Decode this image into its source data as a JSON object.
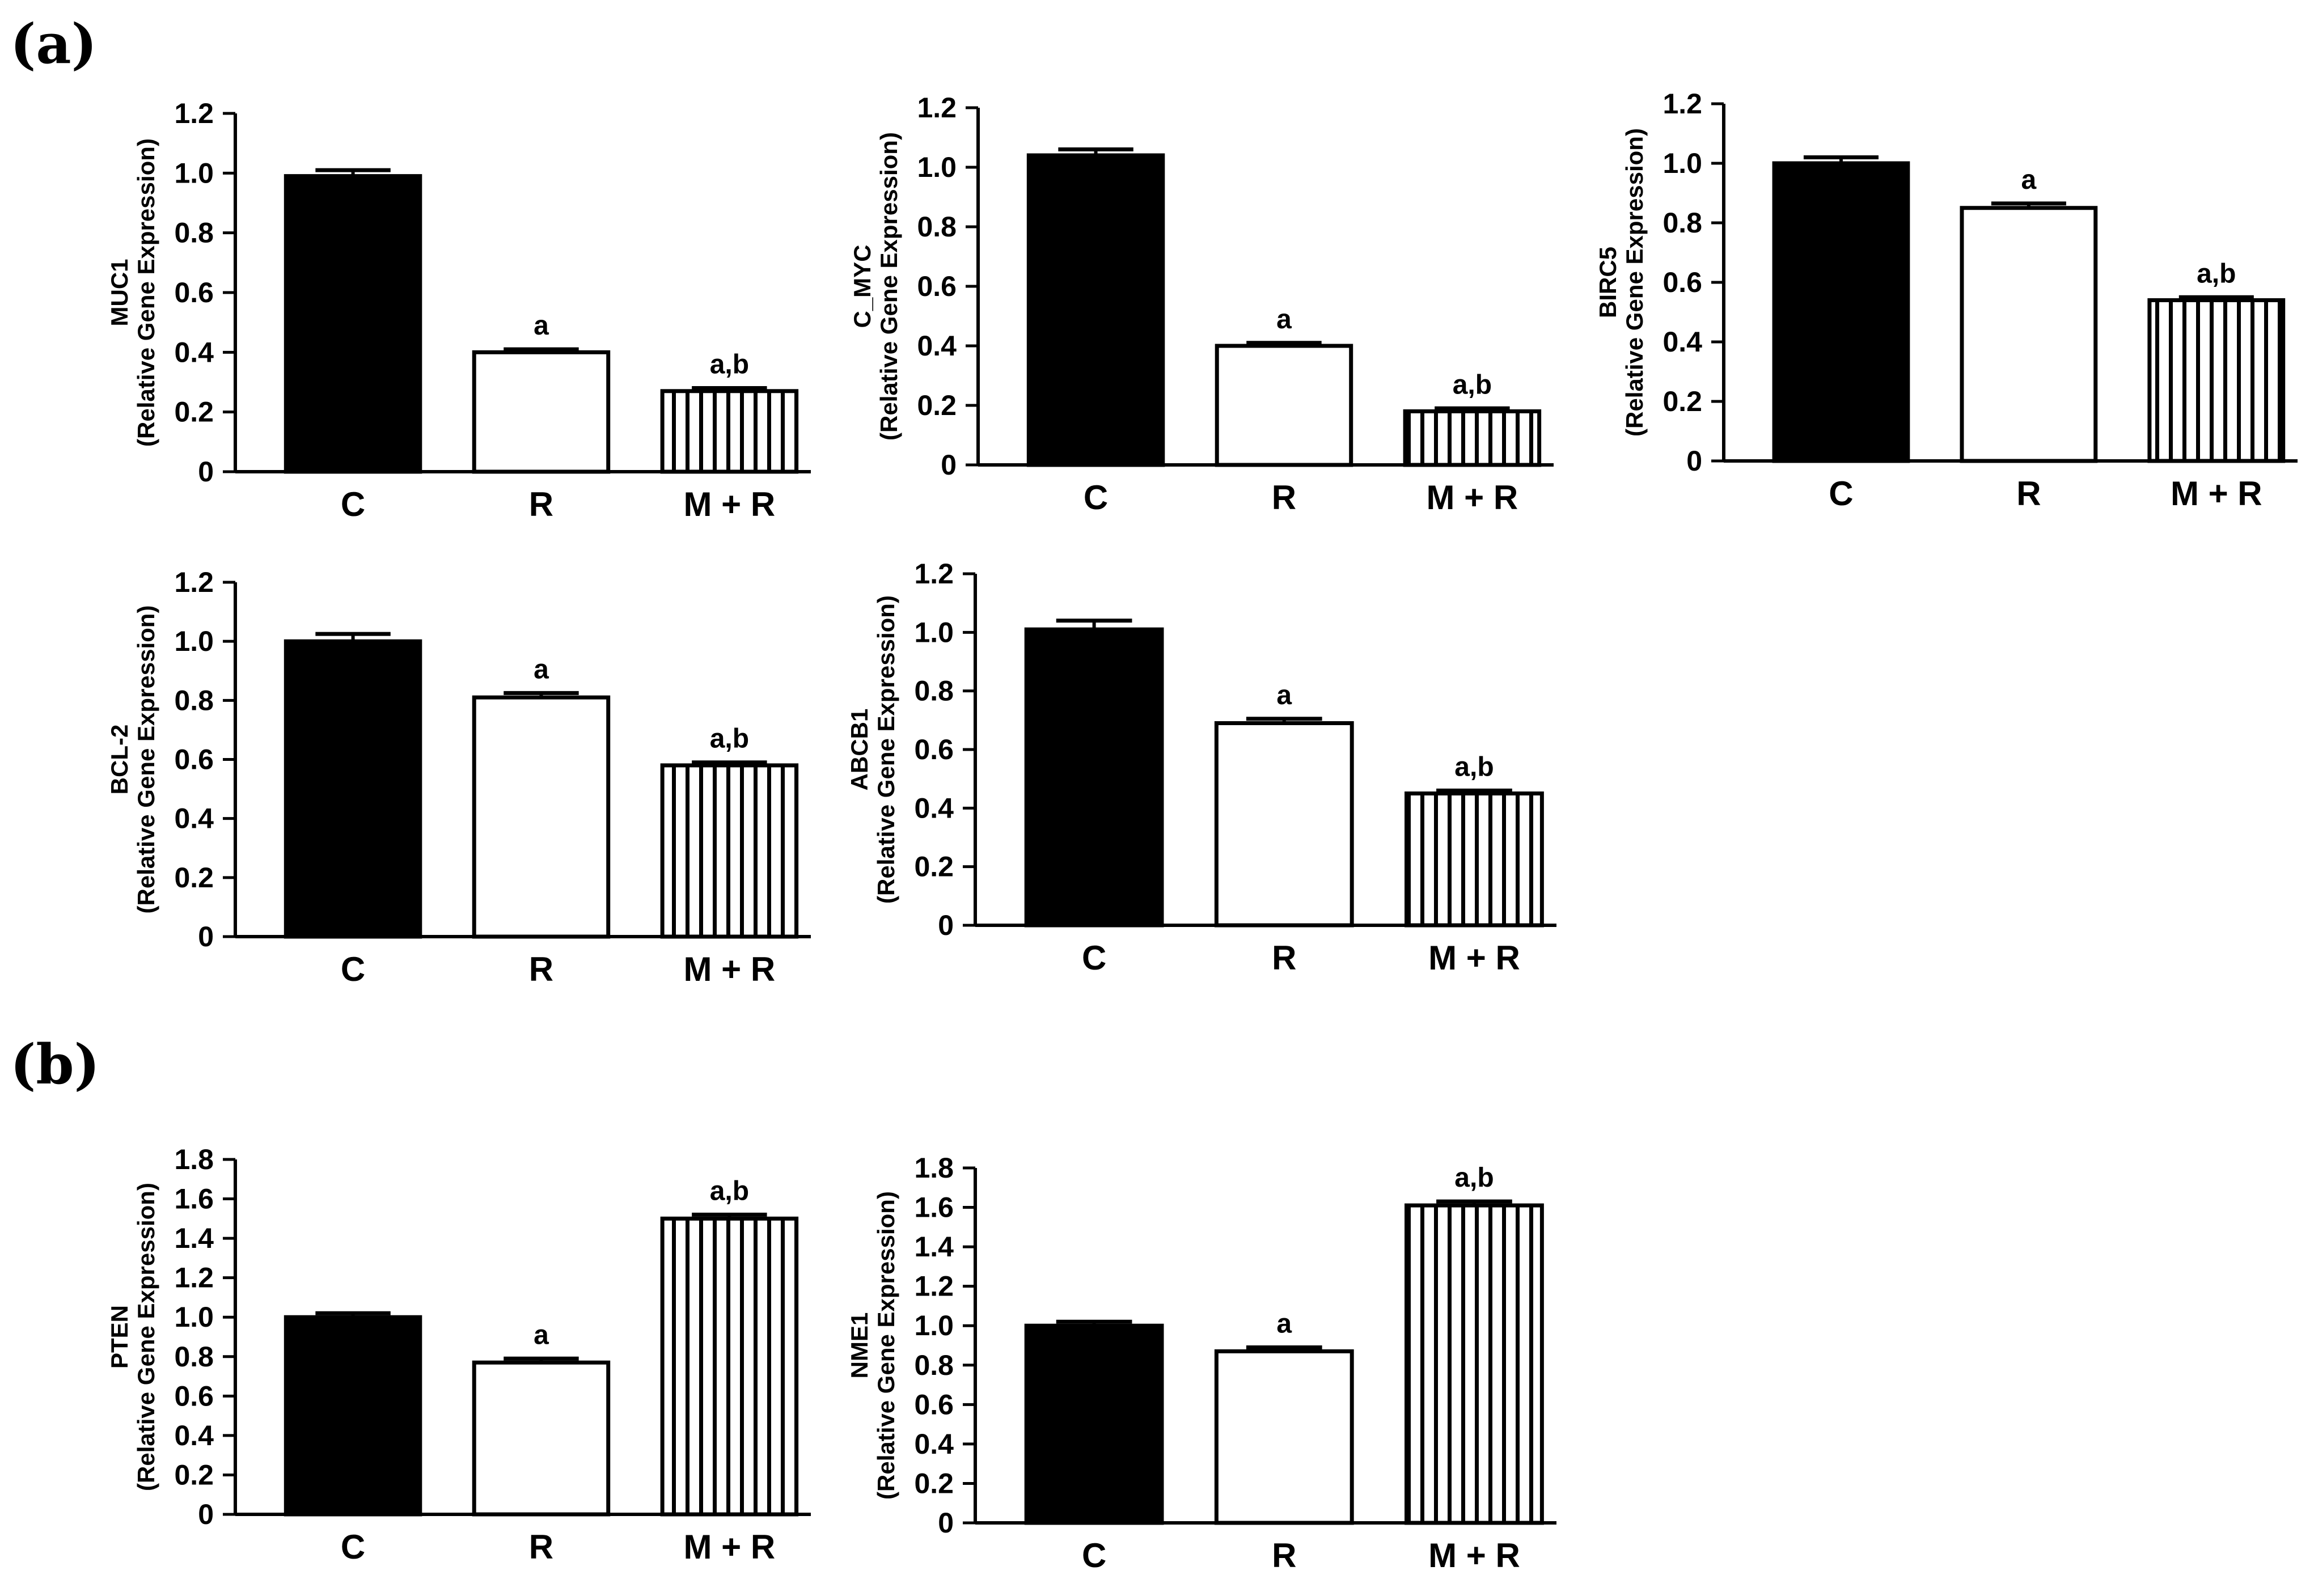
{
  "panels": {
    "a": "(a)",
    "b": "(b)"
  },
  "colors": {
    "ink": "#000000",
    "paper": "#ffffff"
  },
  "y_axis_label": "(Relative Gene Expression)",
  "chart_data": [
    {
      "type": "bar",
      "panel": "a",
      "gene": "MUC1",
      "title": "",
      "xlabel": "",
      "ylabel": "MUC1",
      "ylabel2": "(Relative Gene Expression)",
      "categories": [
        "C",
        "R",
        "M + R"
      ],
      "values": [
        0.99,
        0.4,
        0.27
      ],
      "errors": [
        0.02,
        0.01,
        0.01
      ],
      "annotations": [
        "",
        "a",
        "a,b"
      ],
      "fills": [
        "solid",
        "open",
        "vertical-stripes"
      ],
      "ylim": [
        0,
        1.2
      ],
      "ticks": [
        "0",
        "0.2",
        "0.4",
        "0.6",
        "0.8",
        "1.0",
        "1.2"
      ]
    },
    {
      "type": "bar",
      "panel": "a",
      "gene": "C_MYC",
      "title": "",
      "xlabel": "",
      "ylabel": "C_MYC",
      "ylabel2": "(Relative Gene Expression)",
      "categories": [
        "C",
        "R",
        "M + R"
      ],
      "values": [
        1.04,
        0.4,
        0.18
      ],
      "errors": [
        0.02,
        0.01,
        0.01
      ],
      "annotations": [
        "",
        "a",
        "a,b"
      ],
      "fills": [
        "solid",
        "open",
        "vertical-stripes"
      ],
      "ylim": [
        0,
        1.2
      ],
      "ticks": [
        "0",
        "0.2",
        "0.4",
        "0.6",
        "0.8",
        "1.0",
        "1.2"
      ]
    },
    {
      "type": "bar",
      "panel": "a",
      "gene": "BIRC5",
      "title": "",
      "xlabel": "",
      "ylabel": "BIRC5",
      "ylabel2": "(Relative Gene Expression)",
      "categories": [
        "C",
        "R",
        "M + R"
      ],
      "values": [
        1.0,
        0.85,
        0.54
      ],
      "errors": [
        0.02,
        0.015,
        0.01
      ],
      "annotations": [
        "",
        "a",
        "a,b"
      ],
      "fills": [
        "solid",
        "open",
        "vertical-stripes"
      ],
      "ylim": [
        0,
        1.2
      ],
      "ticks": [
        "0",
        "0.2",
        "0.4",
        "0.6",
        "0.8",
        "1.0",
        "1.2"
      ]
    },
    {
      "type": "bar",
      "panel": "a",
      "gene": "BCL-2",
      "title": "",
      "xlabel": "",
      "ylabel": "BCL-2",
      "ylabel2": "(Relative Gene Expression)",
      "categories": [
        "C",
        "R",
        "M + R"
      ],
      "values": [
        1.0,
        0.81,
        0.58
      ],
      "errors": [
        0.025,
        0.015,
        0.01
      ],
      "annotations": [
        "",
        "a",
        "a,b"
      ],
      "fills": [
        "solid",
        "open",
        "vertical-stripes"
      ],
      "ylim": [
        0,
        1.2
      ],
      "ticks": [
        "0",
        "0.2",
        "0.4",
        "0.6",
        "0.8",
        "1.0",
        "1.2"
      ]
    },
    {
      "type": "bar",
      "panel": "a",
      "gene": "ABCB1",
      "title": "",
      "xlabel": "",
      "ylabel": "ABCB1",
      "ylabel2": "(Relative Gene Expression)",
      "categories": [
        "C",
        "R",
        "M + R"
      ],
      "values": [
        1.01,
        0.69,
        0.45
      ],
      "errors": [
        0.03,
        0.015,
        0.01
      ],
      "annotations": [
        "",
        "a",
        "a,b"
      ],
      "fills": [
        "solid",
        "open",
        "vertical-stripes"
      ],
      "ylim": [
        0,
        1.2
      ],
      "ticks": [
        "0",
        "0.2",
        "0.4",
        "0.6",
        "0.8",
        "1.0",
        "1.2"
      ]
    },
    {
      "type": "bar",
      "panel": "b",
      "gene": "PTEN",
      "title": "",
      "xlabel": "",
      "ylabel": "PTEN",
      "ylabel2": "(Relative Gene Expression)",
      "categories": [
        "C",
        "R",
        "M + R"
      ],
      "values": [
        1.0,
        0.77,
        1.5
      ],
      "errors": [
        0.02,
        0.02,
        0.02
      ],
      "annotations": [
        "",
        "a",
        "a,b"
      ],
      "fills": [
        "solid",
        "open",
        "vertical-stripes"
      ],
      "ylim": [
        0,
        1.8
      ],
      "ticks": [
        "0",
        "0.2",
        "0.4",
        "0.6",
        "0.8",
        "1.0",
        "1.2",
        "1.4",
        "1.6",
        "1.8"
      ]
    },
    {
      "type": "bar",
      "panel": "b",
      "gene": "NME1",
      "title": "",
      "xlabel": "",
      "ylabel": "NME1",
      "ylabel2": "(Relative Gene Expression)",
      "categories": [
        "C",
        "R",
        "M + R"
      ],
      "values": [
        1.0,
        0.87,
        1.61
      ],
      "errors": [
        0.02,
        0.02,
        0.02
      ],
      "annotations": [
        "",
        "a",
        "a,b"
      ],
      "fills": [
        "solid",
        "open",
        "vertical-stripes"
      ],
      "ylim": [
        0,
        1.8
      ],
      "ticks": [
        "0",
        "0.2",
        "0.4",
        "0.6",
        "0.8",
        "1.0",
        "1.2",
        "1.4",
        "1.6",
        "1.8"
      ]
    }
  ]
}
